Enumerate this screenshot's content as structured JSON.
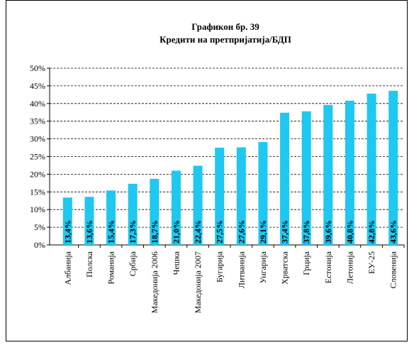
{
  "chart_data": {
    "type": "bar",
    "title": "Графикон бр.  39",
    "subtitle": "Кредити на претпријатија/БДП",
    "categories": [
      "Албанија",
      "Полска",
      "Романија",
      "Србија",
      "Македонија 2006",
      "Чешка",
      "Македонија 2007",
      "Бугарија",
      "Литванија",
      "Унгарија",
      "Хрватска",
      "Грција",
      "Естонија",
      "Летонија",
      "ЕУ-25",
      "Словенија"
    ],
    "values": [
      13.4,
      13.6,
      15.4,
      17.3,
      18.7,
      21.0,
      22.4,
      27.5,
      27.6,
      29.1,
      37.4,
      37.8,
      39.6,
      40.8,
      42.8,
      43.6
    ],
    "value_labels": [
      "13,4%",
      "13,6%",
      "15,4%",
      "17,3%",
      "18,7%",
      "21,0%",
      "22,4%",
      "27,5%",
      "27,6%",
      "29,1%",
      "37,4%",
      "37,8%",
      "39,6%",
      "40,8%",
      "42,8%",
      "43,6%"
    ],
    "color": "#1ec8f0",
    "ylim": [
      0,
      50
    ],
    "yticks": [
      {
        "value": 0,
        "label": "0%"
      },
      {
        "value": 5,
        "label": "5%"
      },
      {
        "value": 10,
        "label": "10%"
      },
      {
        "value": 15,
        "label": "15%"
      },
      {
        "value": 20,
        "label": "20%"
      },
      {
        "value": 25,
        "label": "25%"
      },
      {
        "value": 30,
        "label": "30%"
      },
      {
        "value": 35,
        "label": "35%"
      },
      {
        "value": 40,
        "label": "40%"
      },
      {
        "value": 45,
        "label": "45%"
      },
      {
        "value": 50,
        "label": "50%"
      }
    ],
    "grid": true
  }
}
